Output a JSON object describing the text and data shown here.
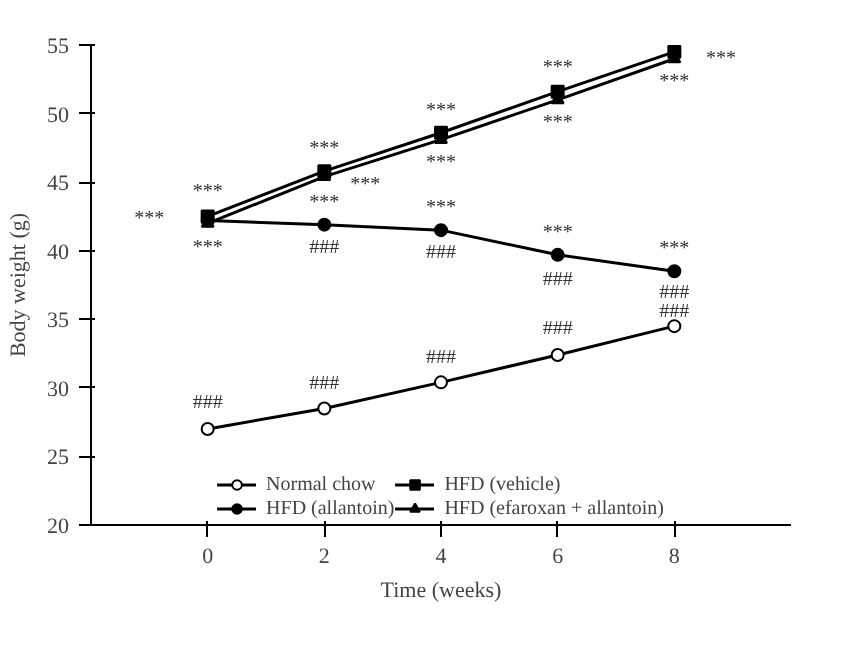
{
  "chart_data": {
    "type": "line",
    "xlabel": "Time (weeks)",
    "ylabel": "Body weight (g)",
    "x": [
      0,
      2,
      4,
      6,
      8
    ],
    "xlim": [
      -2,
      10
    ],
    "xticks": [
      0,
      2,
      4,
      6,
      8
    ],
    "ylim": [
      20,
      55
    ],
    "yticks": [
      20,
      25,
      30,
      35,
      40,
      45,
      50,
      55
    ],
    "grid": false,
    "legend": "bottom",
    "series": [
      {
        "name": "Normal chow",
        "color": "#000000",
        "marker": "circle_open",
        "values": [
          27.0,
          28.5,
          30.4,
          32.4,
          34.5
        ]
      },
      {
        "name": "HFD (vehicle)",
        "color": "#000000",
        "marker": "square",
        "values": [
          42.5,
          45.8,
          48.6,
          51.6,
          54.5
        ]
      },
      {
        "name": "HFD (allantoin)",
        "color": "#000000",
        "marker": "circle",
        "values": [
          42.2,
          41.9,
          41.5,
          39.7,
          38.5
        ]
      },
      {
        "name": "HFD (efaroxan + allantoin)",
        "color": "#000000",
        "marker": "triangle",
        "values": [
          42.0,
          45.4,
          48.1,
          51.0,
          54.0
        ]
      }
    ],
    "annotations": [
      "***",
      "***",
      "***",
      "###",
      "***",
      "***",
      "***",
      "###",
      "###",
      "***",
      "***",
      "***",
      "###",
      "###",
      "***",
      "***",
      "***",
      "###",
      "###",
      "***",
      "***",
      "***",
      "###",
      "###"
    ]
  }
}
